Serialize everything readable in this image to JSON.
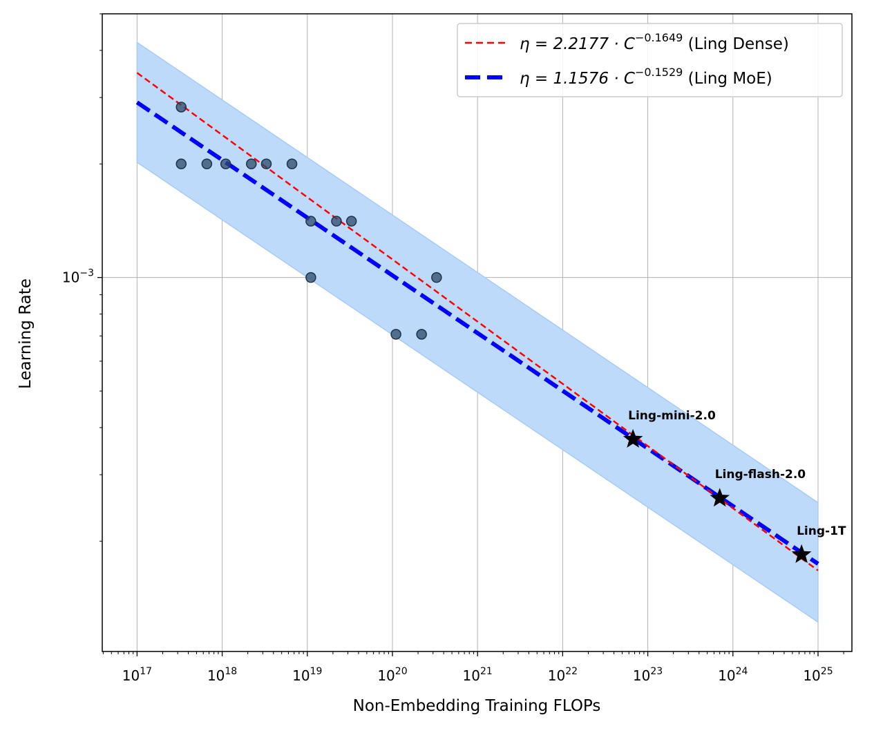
{
  "chart_data": {
    "type": "scatter",
    "title": "",
    "xlabel": "Non-Embedding Training FLOPs",
    "ylabel": "Learning Rate",
    "xscale": "log",
    "yscale": "log",
    "xlim": [
      3.9e+16,
      2.5e+25
    ],
    "ylim": [
      0.000102,
      0.005
    ],
    "x_ticks": [
      1e+17,
      1e+18,
      1e+19,
      1e+20,
      1e+21,
      1e+22,
      1e+23,
      1e+24,
      1e+25
    ],
    "x_tick_labels": [
      {
        "base": "10",
        "exp": "17"
      },
      {
        "base": "10",
        "exp": "18"
      },
      {
        "base": "10",
        "exp": "19"
      },
      {
        "base": "10",
        "exp": "20"
      },
      {
        "base": "10",
        "exp": "21"
      },
      {
        "base": "10",
        "exp": "22"
      },
      {
        "base": "10",
        "exp": "23"
      },
      {
        "base": "10",
        "exp": "24"
      },
      {
        "base": "10",
        "exp": "25"
      }
    ],
    "y_ticks": [
      0.001
    ],
    "y_tick_labels": [
      {
        "base": "10",
        "exp": "−3"
      }
    ],
    "grid": true,
    "legend_placement": "top-right",
    "scatter_points": {
      "color": "#2e4a6b",
      "x": [
        3.3e+17,
        3.3e+17,
        6.6e+17,
        1.1e+18,
        2.2e+18,
        3.3e+18,
        6.6e+18,
        1.1e+19,
        1.1e+19,
        2.2e+19,
        3.3e+19,
        1.1e+20,
        2.2e+20,
        3.3e+20
      ],
      "y": [
        0.00283,
        0.002,
        0.002,
        0.002,
        0.002,
        0.002,
        0.002,
        0.00141,
        0.001,
        0.00141,
        0.00141,
        0.000707,
        0.000707,
        0.001
      ]
    },
    "band": {
      "color": "#bddafa",
      "x": [
        1e+17,
        1e+25
      ],
      "upper": [
        0.0042,
        0.000253
      ],
      "lower": [
        0.00202,
        0.000122
      ]
    },
    "series": [
      {
        "name": "Ling Dense",
        "legend_label": {
          "prefix": "η = 2.2177 · C",
          "exp": "−0.1649",
          "suffix": " (Ling Dense)"
        },
        "coef": 2.2177,
        "exponent": -0.1649,
        "color": "#ff0000",
        "style": "dashed-thin",
        "x_range": [
          1e+17,
          1e+25
        ]
      },
      {
        "name": "Ling MoE",
        "legend_label": {
          "prefix": "η = 1.1576 · C",
          "exp": "−0.1529",
          "suffix": " (Ling MoE)"
        },
        "coef": 1.1576,
        "exponent": -0.1529,
        "color": "#0000ff",
        "style": "dashed-thick",
        "x_range": [
          1e+17,
          1e+25
        ]
      }
    ],
    "annotations": [
      {
        "label": "Ling-mini-2.0",
        "x": 6.7e+22,
        "y": 0.000374,
        "marker": "star"
      },
      {
        "label": "Ling-flash-2.0",
        "x": 7e+23,
        "y": 0.000261,
        "marker": "star"
      },
      {
        "label": "Ling-1T",
        "x": 6.4e+24,
        "y": 0.000185,
        "marker": "star"
      }
    ]
  }
}
